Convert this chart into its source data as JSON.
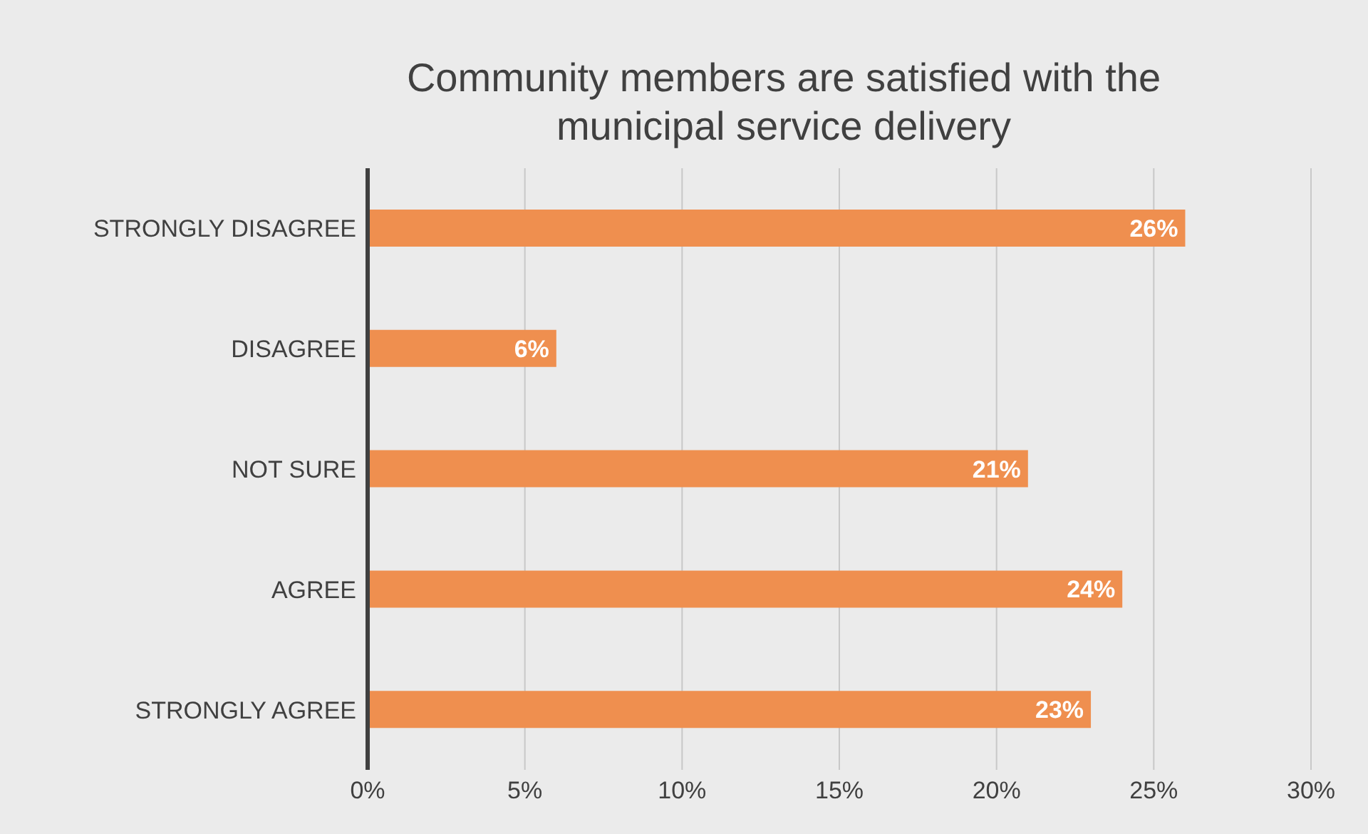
{
  "chart_data": {
    "type": "bar",
    "orientation": "horizontal",
    "title": "Community members are satisfied with the municipal service delivery",
    "categories": [
      "STRONGLY DISAGREE",
      "DISAGREE",
      "NOT SURE",
      "AGREE",
      "STRONGLY AGREE"
    ],
    "values": [
      26,
      6,
      21,
      24,
      23
    ],
    "value_labels": [
      "26%",
      "6%",
      "21%",
      "24%",
      "23%"
    ],
    "color": "#ef8f4f",
    "xlim": [
      0,
      30
    ],
    "xticks": [
      {
        "value": 0,
        "label": "0%"
      },
      {
        "value": 5,
        "label": "5%"
      },
      {
        "value": 10,
        "label": "10%"
      },
      {
        "value": 15,
        "label": "15%"
      },
      {
        "value": 20,
        "label": "20%"
      },
      {
        "value": 25,
        "label": "25%"
      },
      {
        "value": 30,
        "label": "30%"
      }
    ],
    "grid": "x"
  }
}
